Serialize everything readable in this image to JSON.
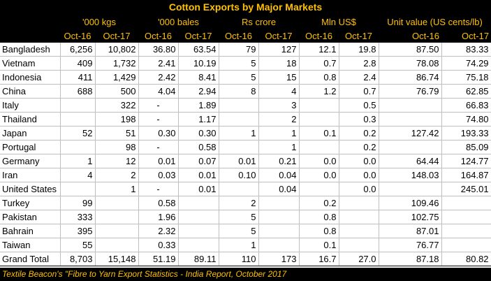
{
  "title": "Cotton Exports by Major Markets",
  "groups": [
    "'000 kgs",
    "'000 bales",
    "Rs crore",
    "Mln US$",
    "Unit value (US cents/lb)"
  ],
  "periods": [
    "Oct-16",
    "Oct-17"
  ],
  "rows": [
    {
      "market": "Bangladesh",
      "v": [
        "6,256",
        "10,802",
        "36.80",
        "63.54",
        "79",
        "127",
        "12.1",
        "19.8",
        "87.50",
        "83.33"
      ]
    },
    {
      "market": "Vietnam",
      "v": [
        "409",
        "1,732",
        "2.41",
        "10.19",
        "5",
        "18",
        "0.7",
        "2.8",
        "78.08",
        "74.29"
      ]
    },
    {
      "market": "Indonesia",
      "v": [
        "411",
        "1,429",
        "2.42",
        "8.41",
        "5",
        "15",
        "0.8",
        "2.4",
        "86.74",
        "75.18"
      ]
    },
    {
      "market": "China",
      "v": [
        "688",
        "500",
        "4.04",
        "2.94",
        "8",
        "4",
        "1.2",
        "0.7",
        "76.79",
        "62.85"
      ]
    },
    {
      "market": "Italy",
      "v": [
        "",
        "322",
        "-",
        "1.89",
        "",
        "3",
        "",
        "0.5",
        "",
        "66.83"
      ]
    },
    {
      "market": "Thailand",
      "v": [
        "",
        "198",
        "-",
        "1.17",
        "",
        "2",
        "",
        "0.3",
        "",
        "74.80"
      ]
    },
    {
      "market": "Japan",
      "v": [
        "52",
        "51",
        "0.30",
        "0.30",
        "1",
        "1",
        "0.1",
        "0.2",
        "127.42",
        "193.33"
      ]
    },
    {
      "market": "Portugal",
      "v": [
        "",
        "98",
        "-",
        "0.58",
        "",
        "1",
        "",
        "0.2",
        "",
        "85.09"
      ]
    },
    {
      "market": "Germany",
      "v": [
        "1",
        "12",
        "0.01",
        "0.07",
        "0.01",
        "0.21",
        "0.0",
        "0.0",
        "64.44",
        "124.77"
      ]
    },
    {
      "market": "Iran",
      "v": [
        "4",
        "2",
        "0.03",
        "0.01",
        "0.10",
        "0.04",
        "0.0",
        "0.0",
        "148.03",
        "164.87"
      ]
    },
    {
      "market": "United States",
      "v": [
        "",
        "1",
        "-",
        "0.01",
        "",
        "0.04",
        "",
        "0.0",
        "",
        "245.01"
      ]
    },
    {
      "market": "Turkey",
      "v": [
        "99",
        "",
        "0.58",
        "",
        "2",
        "",
        "0.2",
        "",
        "109.46",
        ""
      ]
    },
    {
      "market": "Pakistan",
      "v": [
        "333",
        "",
        "1.96",
        "",
        "5",
        "",
        "0.8",
        "",
        "102.75",
        ""
      ]
    },
    {
      "market": "Bahrain",
      "v": [
        "395",
        "",
        "2.32",
        "",
        "5",
        "",
        "0.8",
        "",
        "87.01",
        ""
      ]
    },
    {
      "market": "Taiwan",
      "v": [
        "55",
        "",
        "0.33",
        "",
        "1",
        "",
        "0.1",
        "",
        "76.77",
        ""
      ]
    },
    {
      "market": "Grand Total",
      "v": [
        "8,703",
        "15,148",
        "51.19",
        "89.11",
        "110",
        "173",
        "16.7",
        "27.0",
        "87.18",
        "80.82"
      ]
    }
  ],
  "footer": "Textile Beacon's \"Fibre to Yarn Export Statistics - India Report, October 2017"
}
